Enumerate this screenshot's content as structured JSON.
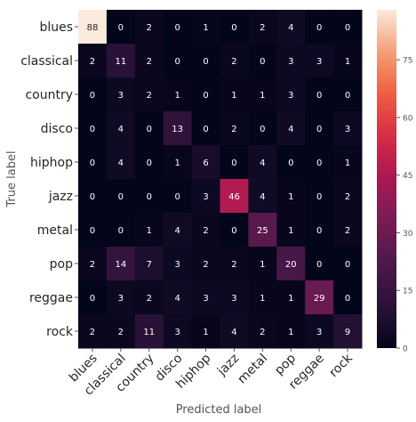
{
  "chart_data": {
    "type": "heatmap",
    "title": "",
    "xlabel": "Predicted label",
    "ylabel": "True label",
    "x_categories": [
      "blues",
      "classical",
      "country",
      "disco",
      "hiphop",
      "jazz",
      "metal",
      "pop",
      "reggae",
      "rock"
    ],
    "y_categories": [
      "blues",
      "classical",
      "country",
      "disco",
      "hiphop",
      "jazz",
      "metal",
      "pop",
      "reggae",
      "rock"
    ],
    "values": [
      [
        88,
        0,
        2,
        0,
        1,
        0,
        2,
        4,
        0,
        0
      ],
      [
        2,
        11,
        2,
        0,
        0,
        2,
        0,
        3,
        3,
        1
      ],
      [
        0,
        3,
        2,
        1,
        0,
        1,
        1,
        3,
        0,
        0
      ],
      [
        0,
        4,
        0,
        13,
        0,
        2,
        0,
        4,
        0,
        3
      ],
      [
        0,
        4,
        0,
        1,
        6,
        0,
        4,
        0,
        0,
        1
      ],
      [
        0,
        0,
        0,
        0,
        3,
        46,
        4,
        1,
        0,
        2
      ],
      [
        0,
        0,
        1,
        4,
        2,
        0,
        25,
        1,
        0,
        2
      ],
      [
        2,
        14,
        7,
        3,
        2,
        2,
        1,
        20,
        0,
        0
      ],
      [
        0,
        3,
        2,
        4,
        3,
        3,
        1,
        1,
        29,
        0
      ],
      [
        2,
        2,
        11,
        3,
        1,
        4,
        2,
        1,
        3,
        9
      ]
    ],
    "vmin": 0,
    "vmax": 88,
    "colorbar": {
      "ticks": [
        0,
        15,
        30,
        45,
        60,
        75
      ],
      "colormap": "rocket"
    },
    "grid": false
  }
}
